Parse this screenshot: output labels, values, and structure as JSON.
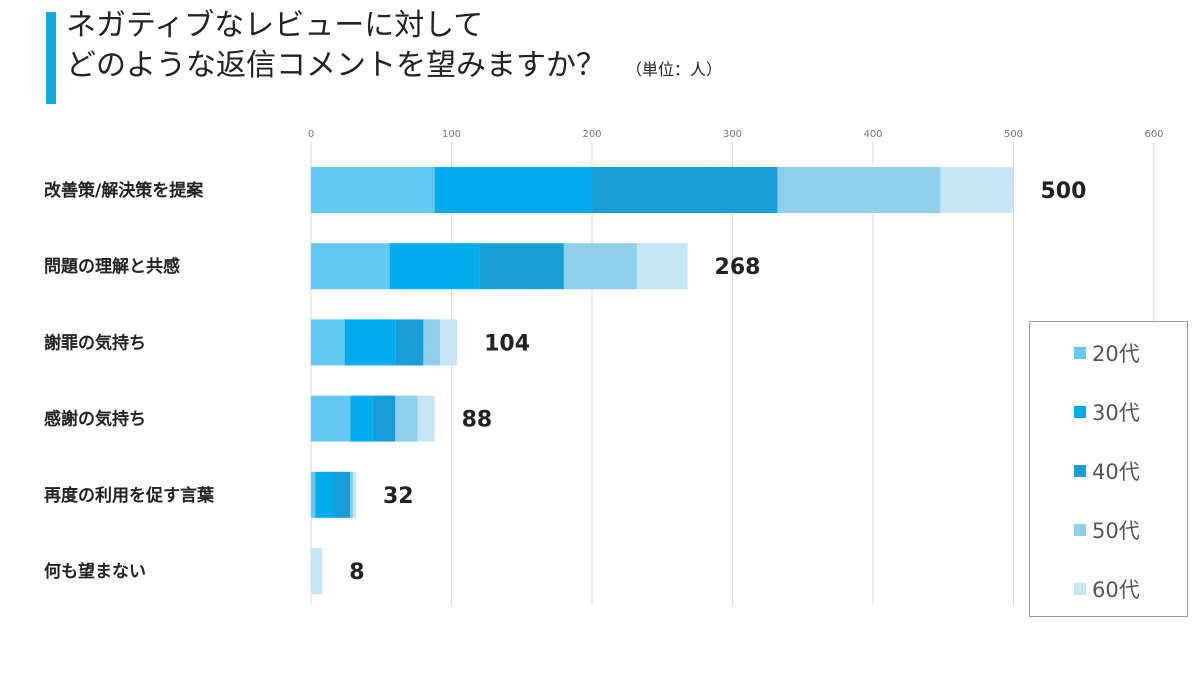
{
  "title": {
    "line1": "ネガティブなレビューに対して",
    "line2": "どのような返信コメントを望みますか？",
    "unit": "（単位：人）"
  },
  "chart_data": {
    "type": "bar",
    "orientation": "horizontal",
    "stacked": true,
    "categories": [
      "改善策/解決策を提案",
      "問題の理解と共感",
      "謝罪の気持ち",
      "感謝の気持ち",
      "再度の利用を促す言葉",
      "何も望まない"
    ],
    "series": [
      {
        "name": "20代",
        "color": "#63c9f1",
        "values": [
          88,
          56,
          24,
          28,
          3,
          0
        ]
      },
      {
        "name": "30代",
        "color": "#00acec",
        "values": [
          112,
          64,
          36,
          16,
          13,
          0
        ]
      },
      {
        "name": "40代",
        "color": "#179ed6",
        "values": [
          132,
          60,
          20,
          16,
          12,
          0
        ]
      },
      {
        "name": "50代",
        "color": "#8fcfec",
        "values": [
          116,
          52,
          12,
          16,
          2,
          0
        ]
      },
      {
        "name": "60代",
        "color": "#c6e6f6",
        "values": [
          52,
          36,
          12,
          12,
          2,
          8
        ]
      }
    ],
    "totals": [
      500,
      268,
      104,
      88,
      32,
      8
    ],
    "xlim": [
      0,
      600
    ],
    "xticks": [
      0,
      100,
      200,
      300,
      400,
      500,
      600
    ],
    "grid": true,
    "legend_position": "right"
  }
}
